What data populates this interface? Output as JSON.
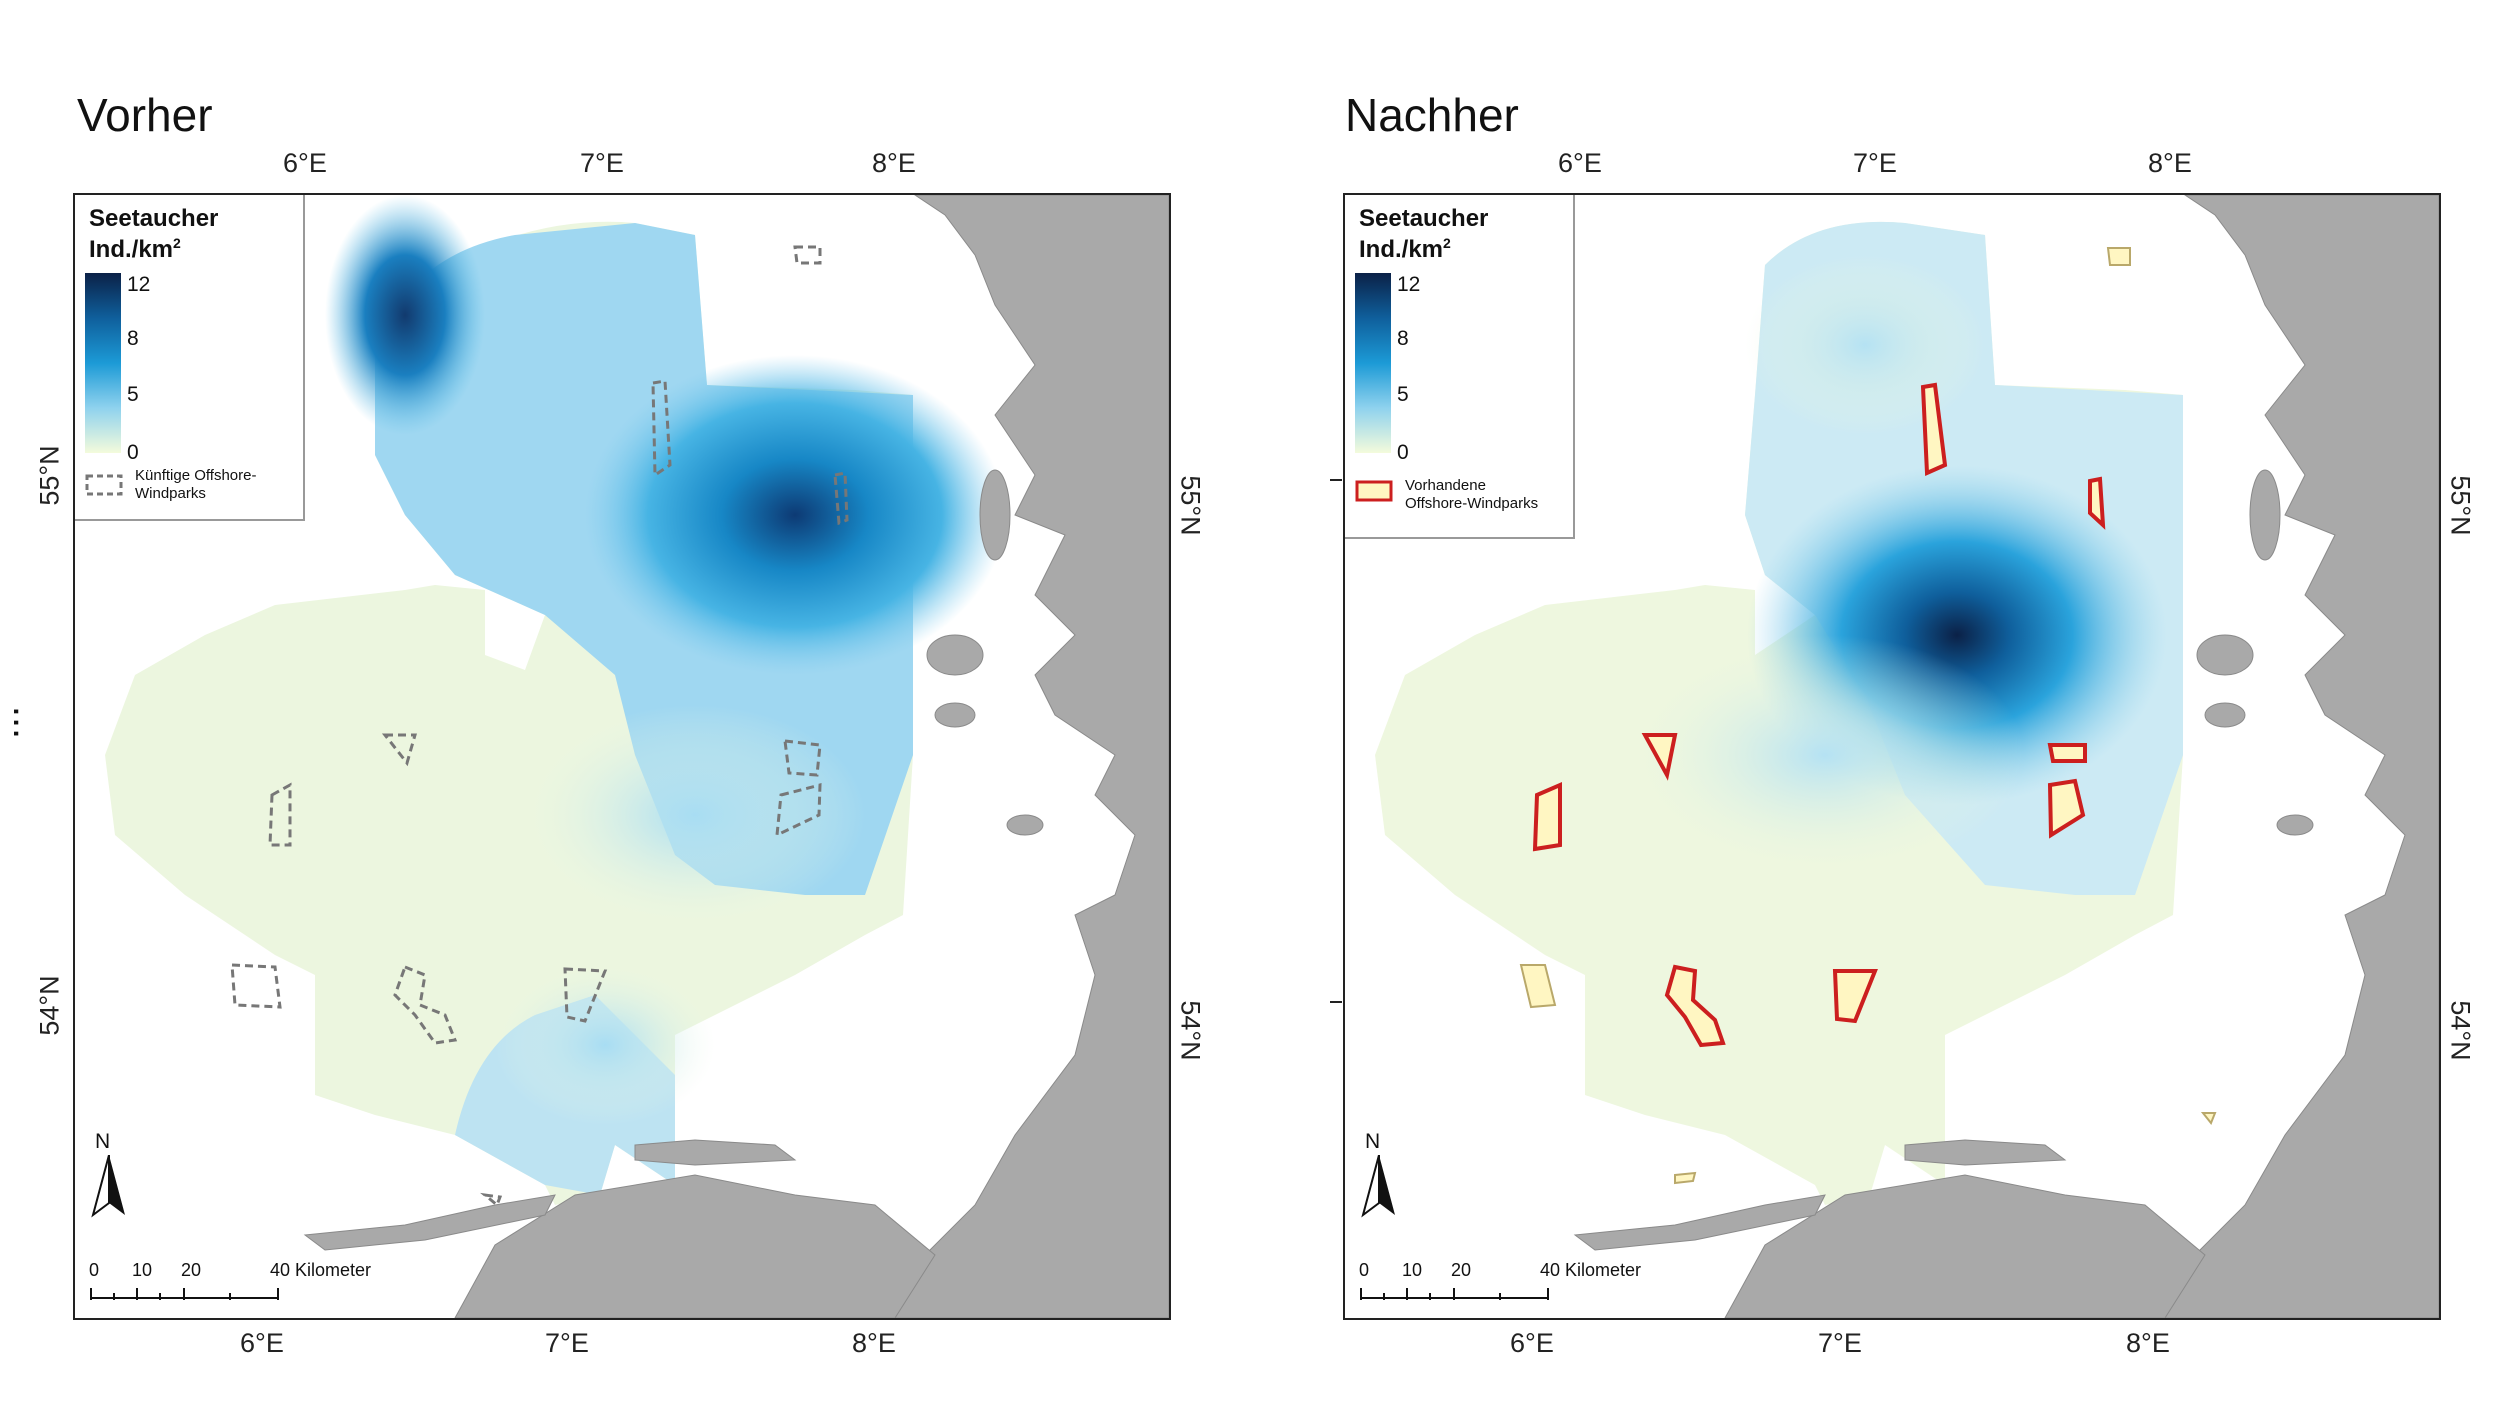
{
  "panels": {
    "left": {
      "title": "Vorher",
      "legend": {
        "title_line1": "Seetaucher",
        "title_line2": "Ind./km",
        "title_sup": "2",
        "ramp_labels": [
          "12",
          "8",
          "5",
          "0"
        ],
        "windpark_label_line1": "Künftige Offshore-",
        "windpark_label_line2": "Windparks",
        "windpark_style": "dashed-grey"
      }
    },
    "right": {
      "title": "Nachher",
      "legend": {
        "title_line1": "Seetaucher",
        "title_line2": "Ind./km",
        "title_sup": "2",
        "ramp_labels": [
          "12",
          "8",
          "5",
          "0"
        ],
        "windpark_label_line1": "Vorhandene",
        "windpark_label_line2": "Offshore-Windparks",
        "windpark_style": "red-outline-yellow-fill"
      }
    }
  },
  "axes": {
    "top_ticks": [
      "6°E",
      "7°E",
      "8°E"
    ],
    "bottom_ticks": [
      "6°E",
      "7°E",
      "8°E"
    ],
    "left_ticks": [
      "55°N",
      "54°N"
    ],
    "right_ticks": [
      "55°N",
      "54°N"
    ]
  },
  "north_label": "N",
  "scale": {
    "labels": [
      "0",
      "10",
      "20",
      "40 Kilometer"
    ]
  },
  "side_marker": "...",
  "colors": {
    "land": "#a9a9a9",
    "ramp_high": "#0b2147",
    "ramp_mid": "#1c9ad6",
    "ramp_low": "#f4fbdc",
    "windpark_future": "#777777",
    "windpark_existing_stroke": "#cc1f1f",
    "windpark_existing_fill": "#fff6c2"
  }
}
